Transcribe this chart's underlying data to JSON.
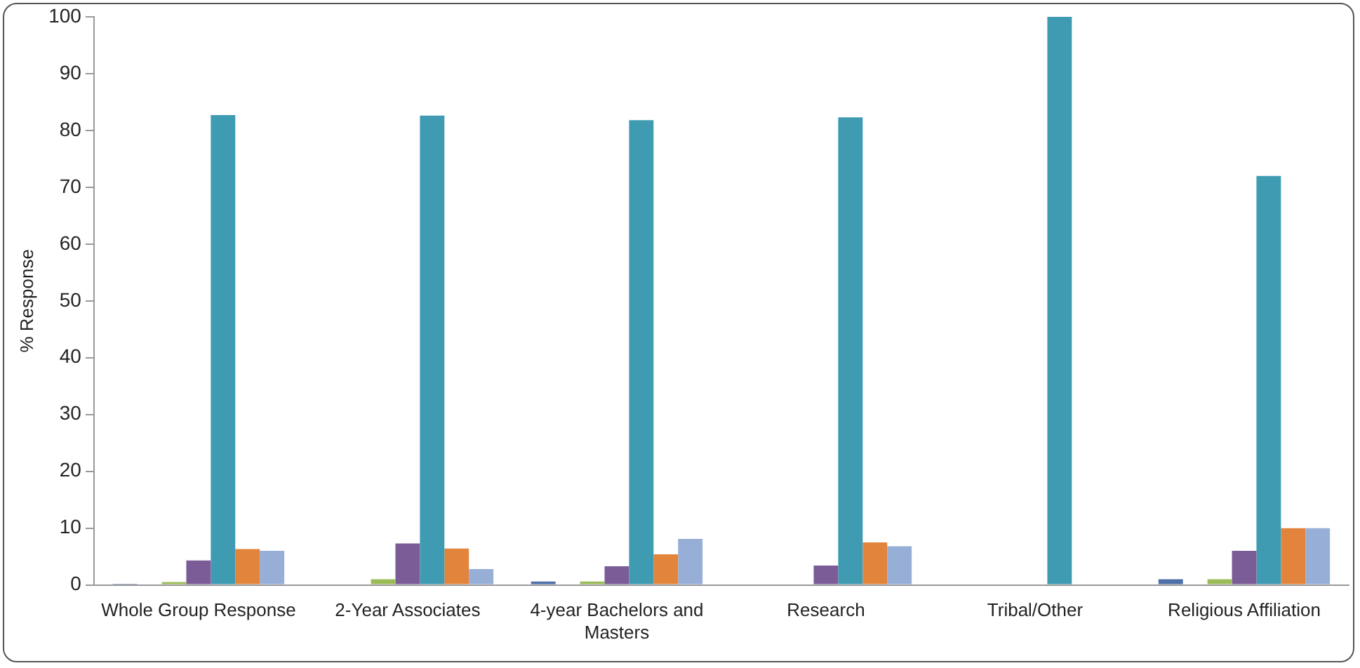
{
  "chart_data": {
    "type": "bar",
    "ylabel": "% Response",
    "categories": [
      "Whole Group Response",
      "2-Year Associates",
      "4-year Bachelors and Masters",
      "Research",
      "Tribal/Other",
      "Religious Affiliation"
    ],
    "series": [
      {
        "color": "#4f6fa8",
        "values": [
          0.2,
          0,
          0.6,
          0,
          0,
          1.0
        ]
      },
      {
        "color": "#c0504d",
        "values": [
          0,
          0,
          0,
          0,
          0,
          0
        ]
      },
      {
        "color": "#9bbb59",
        "values": [
          0.5,
          1.0,
          0.6,
          0,
          0,
          1.0
        ]
      },
      {
        "color": "#7b5c97",
        "values": [
          4.3,
          7.3,
          3.3,
          3.4,
          0,
          6.0
        ]
      },
      {
        "color": "#3f9bb2",
        "values": [
          82.7,
          82.6,
          81.8,
          82.3,
          100,
          72
        ]
      },
      {
        "color": "#e2843b",
        "values": [
          6.3,
          6.4,
          5.4,
          7.5,
          0,
          10
        ]
      },
      {
        "color": "#97aed6",
        "values": [
          6.0,
          2.8,
          8.1,
          6.8,
          0,
          10
        ]
      }
    ],
    "ylim": [
      0,
      100
    ],
    "yticks": [
      0,
      10,
      20,
      30,
      40,
      50,
      60,
      70,
      80,
      90,
      100
    ],
    "grid": false,
    "legend": false
  }
}
